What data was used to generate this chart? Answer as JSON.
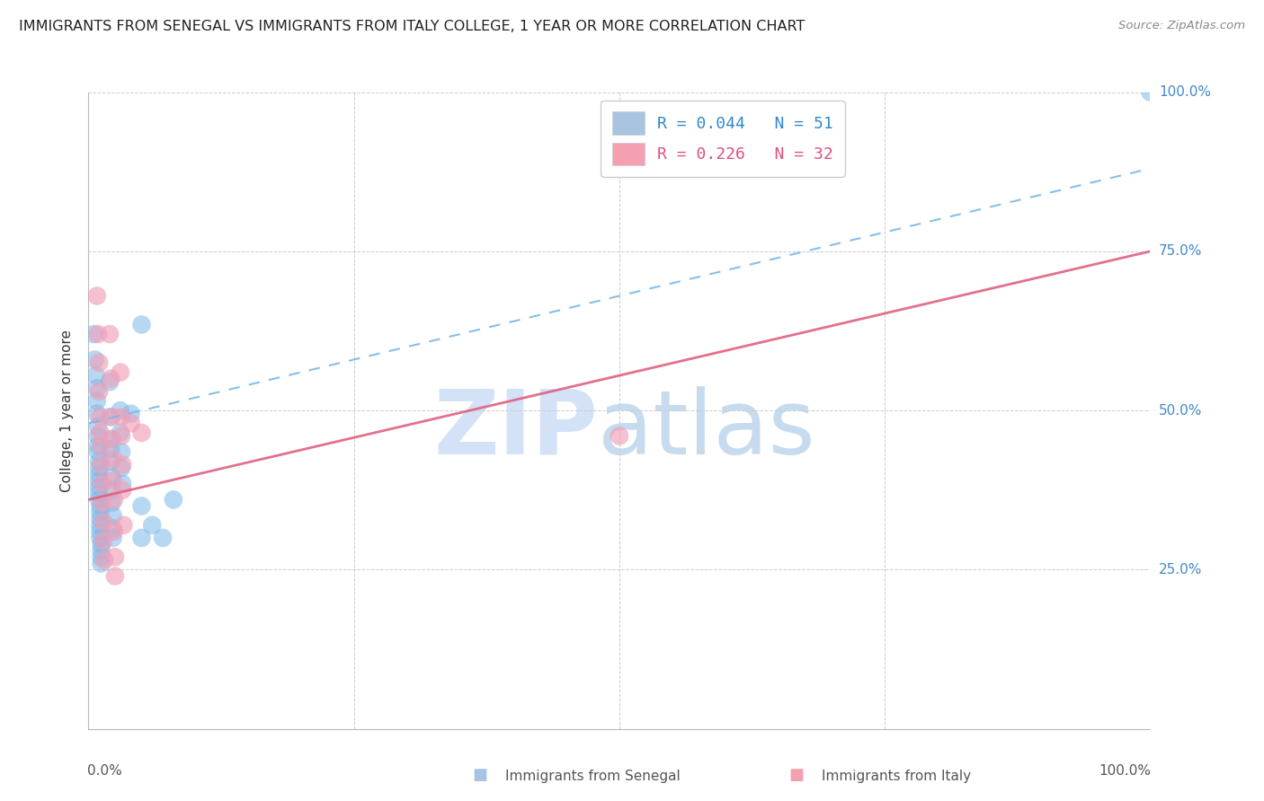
{
  "title": "IMMIGRANTS FROM SENEGAL VS IMMIGRANTS FROM ITALY COLLEGE, 1 YEAR OR MORE CORRELATION CHART",
  "source_text": "Source: ZipAtlas.com",
  "ylabel": "College, 1 year or more",
  "legend_entries": [
    {
      "label": "R = 0.044   N = 51",
      "color": "#a8c4e0"
    },
    {
      "label": "R = 0.226   N = 32",
      "color": "#f4a0b0"
    }
  ],
  "senegal_dots": [
    [
      0.005,
      0.62
    ],
    [
      0.006,
      0.58
    ],
    [
      0.007,
      0.555
    ],
    [
      0.008,
      0.535
    ],
    [
      0.008,
      0.515
    ],
    [
      0.008,
      0.495
    ],
    [
      0.009,
      0.475
    ],
    [
      0.009,
      0.46
    ],
    [
      0.009,
      0.445
    ],
    [
      0.009,
      0.435
    ],
    [
      0.01,
      0.42
    ],
    [
      0.01,
      0.41
    ],
    [
      0.01,
      0.4
    ],
    [
      0.01,
      0.39
    ],
    [
      0.01,
      0.38
    ],
    [
      0.01,
      0.37
    ],
    [
      0.01,
      0.36
    ],
    [
      0.011,
      0.35
    ],
    [
      0.011,
      0.34
    ],
    [
      0.011,
      0.33
    ],
    [
      0.011,
      0.32
    ],
    [
      0.011,
      0.31
    ],
    [
      0.011,
      0.3
    ],
    [
      0.012,
      0.29
    ],
    [
      0.012,
      0.28
    ],
    [
      0.012,
      0.27
    ],
    [
      0.012,
      0.26
    ],
    [
      0.02,
      0.545
    ],
    [
      0.02,
      0.49
    ],
    [
      0.021,
      0.455
    ],
    [
      0.021,
      0.44
    ],
    [
      0.021,
      0.42
    ],
    [
      0.022,
      0.395
    ],
    [
      0.022,
      0.375
    ],
    [
      0.022,
      0.355
    ],
    [
      0.023,
      0.335
    ],
    [
      0.023,
      0.315
    ],
    [
      0.023,
      0.3
    ],
    [
      0.03,
      0.5
    ],
    [
      0.03,
      0.465
    ],
    [
      0.031,
      0.435
    ],
    [
      0.031,
      0.41
    ],
    [
      0.032,
      0.385
    ],
    [
      0.04,
      0.495
    ],
    [
      0.05,
      0.635
    ],
    [
      0.05,
      0.35
    ],
    [
      0.05,
      0.3
    ],
    [
      0.06,
      0.32
    ],
    [
      0.07,
      0.3
    ],
    [
      0.08,
      0.36
    ],
    [
      1.0,
      1.0
    ]
  ],
  "italy_dots": [
    [
      0.008,
      0.68
    ],
    [
      0.009,
      0.62
    ],
    [
      0.01,
      0.575
    ],
    [
      0.01,
      0.53
    ],
    [
      0.011,
      0.49
    ],
    [
      0.011,
      0.465
    ],
    [
      0.012,
      0.445
    ],
    [
      0.012,
      0.415
    ],
    [
      0.013,
      0.385
    ],
    [
      0.013,
      0.355
    ],
    [
      0.014,
      0.325
    ],
    [
      0.014,
      0.295
    ],
    [
      0.015,
      0.265
    ],
    [
      0.02,
      0.62
    ],
    [
      0.021,
      0.55
    ],
    [
      0.022,
      0.49
    ],
    [
      0.022,
      0.455
    ],
    [
      0.023,
      0.425
    ],
    [
      0.023,
      0.39
    ],
    [
      0.024,
      0.36
    ],
    [
      0.024,
      0.31
    ],
    [
      0.025,
      0.27
    ],
    [
      0.025,
      0.24
    ],
    [
      0.03,
      0.56
    ],
    [
      0.031,
      0.49
    ],
    [
      0.031,
      0.46
    ],
    [
      0.032,
      0.415
    ],
    [
      0.032,
      0.375
    ],
    [
      0.033,
      0.32
    ],
    [
      0.04,
      0.48
    ],
    [
      0.05,
      0.465
    ],
    [
      0.5,
      0.46
    ]
  ],
  "dot_color_senegal": "#7ab8e8",
  "dot_color_italy": "#f0a0b8",
  "trend_color_senegal": "#7ab8e8",
  "trend_color_italy": "#e06080",
  "grid_color": "#cccccc",
  "background_color": "#ffffff",
  "xlim": [
    0.0,
    1.0
  ],
  "ylim": [
    0.0,
    1.0
  ],
  "ytick_positions": [
    0.0,
    0.25,
    0.5,
    0.75,
    1.0
  ],
  "ytick_labels_right": [
    "",
    "25.0%",
    "50.0%",
    "75.0%",
    "100.0%"
  ],
  "xtick_positions": [
    0.0,
    0.25,
    0.5,
    0.75,
    1.0
  ],
  "senegal_trend_y0": 0.48,
  "senegal_trend_y1": 0.88,
  "italy_trend_y0": 0.36,
  "italy_trend_y1": 0.75,
  "legend_bottom_labels": [
    "Immigrants from Senegal",
    "Immigrants from Italy"
  ]
}
